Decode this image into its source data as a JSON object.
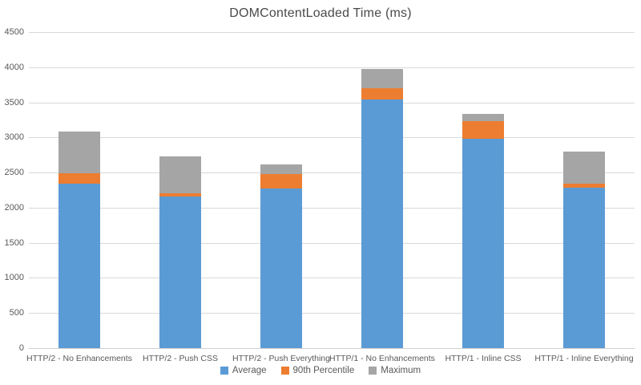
{
  "chart_data": {
    "type": "bar",
    "stacking": "overlay-absolute",
    "title": "DOMContentLoaded Time (ms)",
    "categories": [
      "HTTP/2 - No Enhancements",
      "HTTP/2 - Push CSS",
      "HTTP/2 - Push Everything",
      "HTTP/1 - No Enhancements",
      "HTTP/1 - Inline CSS",
      "HTTP/1 - Inline Everything"
    ],
    "series": [
      {
        "name": "Average",
        "color": "#5b9bd5",
        "values": [
          2340,
          2160,
          2270,
          3540,
          2980,
          2280
        ]
      },
      {
        "name": "90th Percentile",
        "color": "#ed7d31",
        "values": [
          2490,
          2200,
          2480,
          3700,
          3230,
          2340
        ]
      },
      {
        "name": "Maximum",
        "color": "#a5a5a5",
        "values": [
          3080,
          2730,
          2620,
          3980,
          3330,
          2800
        ]
      }
    ],
    "xlabel": "",
    "ylabel": "",
    "ylim": [
      0,
      4500
    ],
    "yticks": [
      0,
      500,
      1000,
      1500,
      2000,
      2500,
      3000,
      3500,
      4000,
      4500
    ],
    "grid": true,
    "legend_position": "bottom",
    "colors": {
      "background": "#ffffff",
      "gridline": "#d9d9d9",
      "axis_text": "#595959",
      "title_text": "#4a4a4a"
    }
  }
}
